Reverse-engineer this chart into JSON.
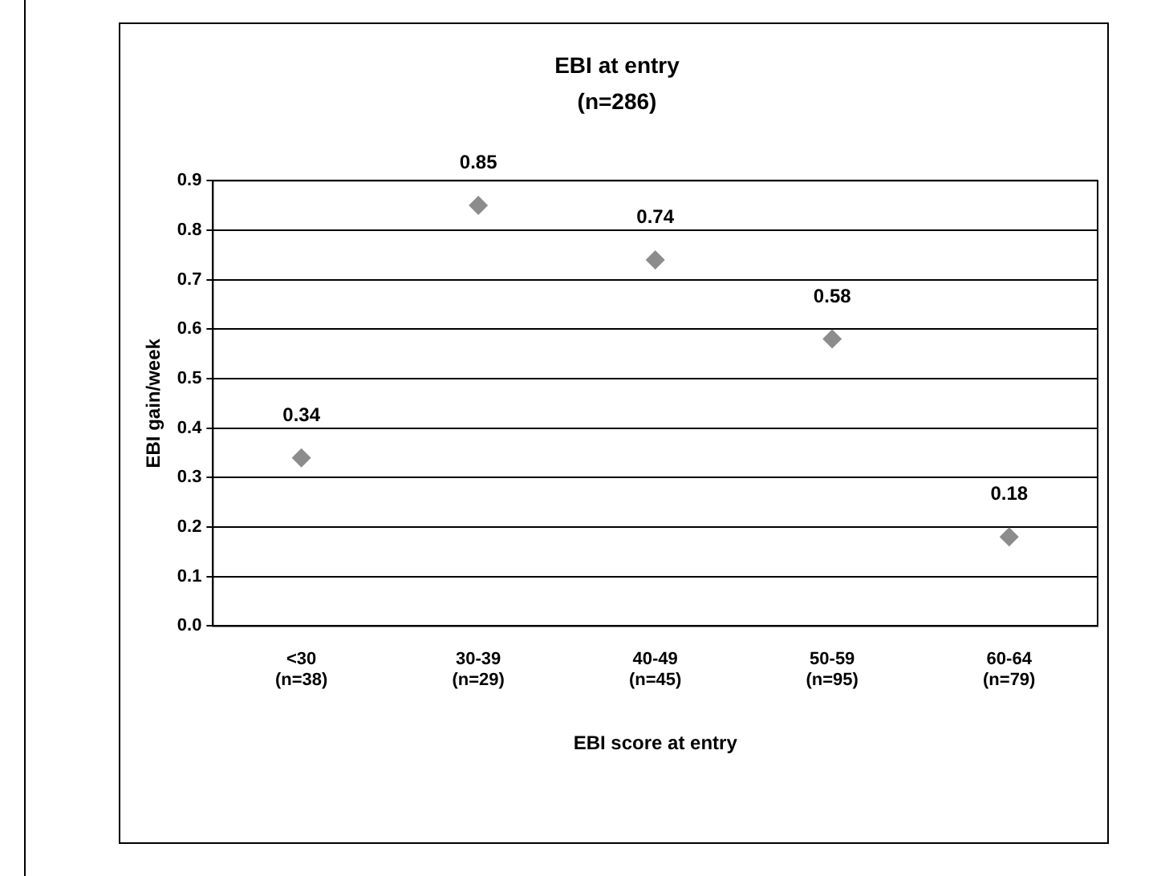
{
  "chart_data": {
    "type": "scatter",
    "title": "EBI at entry",
    "subtitle": "(n=286)",
    "xlabel": "EBI score at entry",
    "ylabel": "EBI gain/week",
    "categories": [
      "<30\n(n=38)",
      "30-39\n(n=29)",
      "40-49\n(n=45)",
      "50-59\n(n=95)",
      "60-64\n(n=79)"
    ],
    "series": [
      {
        "color": "#8c8c8c",
        "values": [
          0.34,
          0.85,
          0.74,
          0.58,
          0.18
        ]
      }
    ],
    "ylim": [
      0,
      0.9
    ],
    "yticks": [
      {
        "value": 0,
        "label": "0.0"
      },
      0.1,
      0.2,
      0.3,
      0.4,
      0.5,
      0.6,
      0.7,
      0.8,
      0.9
    ],
    "grid": "y",
    "legend": false,
    "marker": "diamond",
    "data_labels": true
  }
}
